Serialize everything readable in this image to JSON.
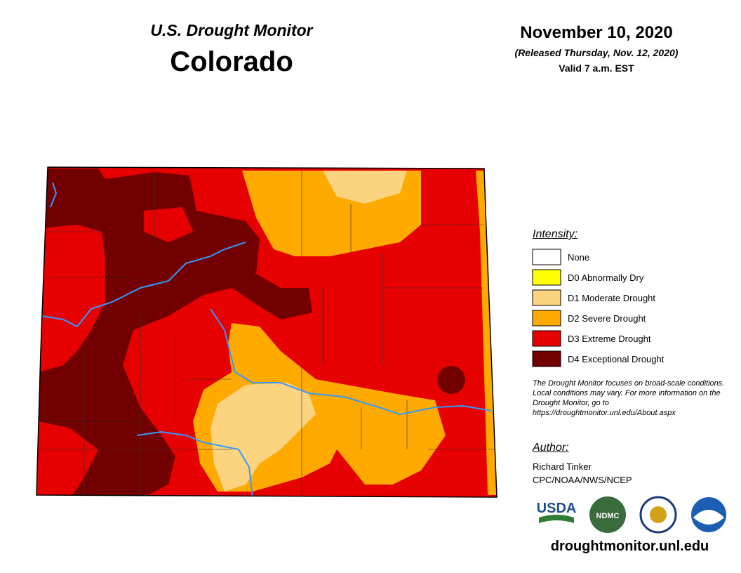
{
  "header": {
    "subtitle": "U.S. Drought Monitor",
    "title": "Colorado",
    "date": "November 10, 2020",
    "released": "(Released Thursday, Nov. 12, 2020)",
    "valid": "Valid 7 a.m. EST"
  },
  "legend": {
    "title": "Intensity:",
    "items": [
      {
        "label": "None",
        "color": "#ffffff"
      },
      {
        "label": "D0 Abnormally Dry",
        "color": "#ffff00"
      },
      {
        "label": "D1 Moderate Drought",
        "color": "#fcd37f"
      },
      {
        "label": "D2 Severe Drought",
        "color": "#ffaa00"
      },
      {
        "label": "D3 Extreme Drought",
        "color": "#e60000"
      },
      {
        "label": "D4 Exceptional Drought",
        "color": "#730000"
      }
    ]
  },
  "note": "The Drought Monitor focuses on broad-scale conditions. Local conditions may vary. For more information on the Drought Monitor, go to https://droughtmonitor.unl.edu/About.aspx",
  "author": {
    "title": "Author:",
    "name": "Richard Tinker",
    "org": "CPC/NOAA/NWS/NCEP"
  },
  "logos": [
    "USDA",
    "NDMC"
  ],
  "url": "droughtmonitor.unl.edu"
}
